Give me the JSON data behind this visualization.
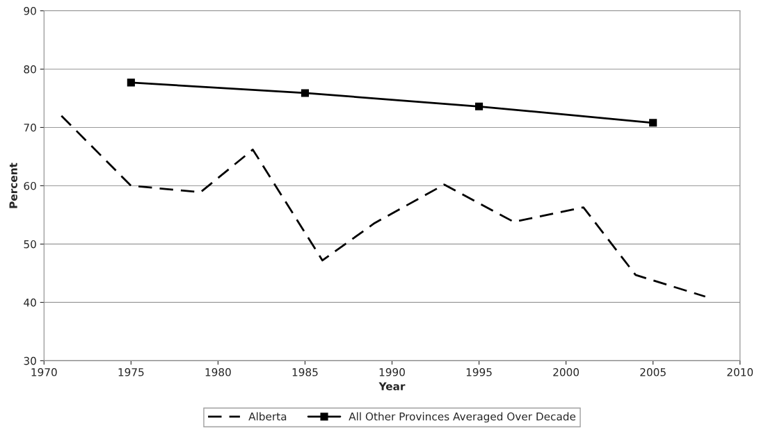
{
  "chart_data": {
    "type": "line",
    "xlabel": "Year",
    "ylabel": "Percent",
    "xlim": [
      1970,
      2010
    ],
    "xticks": [
      1970,
      1975,
      1980,
      1985,
      1990,
      1995,
      2000,
      2005,
      2010
    ],
    "ylim": [
      30,
      90
    ],
    "yticks": [
      30,
      40,
      50,
      60,
      70,
      80,
      90
    ],
    "grid": "y",
    "legend": "bottom",
    "series": [
      {
        "name": "Alberta",
        "color": "#000000",
        "line_style": "dashed",
        "marker": "none",
        "x": [
          1971,
          1975,
          1979,
          1982,
          1986,
          1989,
          1993,
          1997,
          2001,
          2004,
          2008
        ],
        "values": [
          72,
          60,
          58.9,
          66.2,
          47.2,
          53.6,
          60.2,
          53.8,
          56.3,
          44.7,
          41.0
        ]
      },
      {
        "name": "All Other Provinces Averaged Over Decade",
        "color": "#000000",
        "line_style": "solid",
        "marker": "square",
        "x": [
          1975,
          1985,
          1995,
          2005
        ],
        "values": [
          77.7,
          75.9,
          73.6,
          70.8
        ]
      }
    ]
  }
}
